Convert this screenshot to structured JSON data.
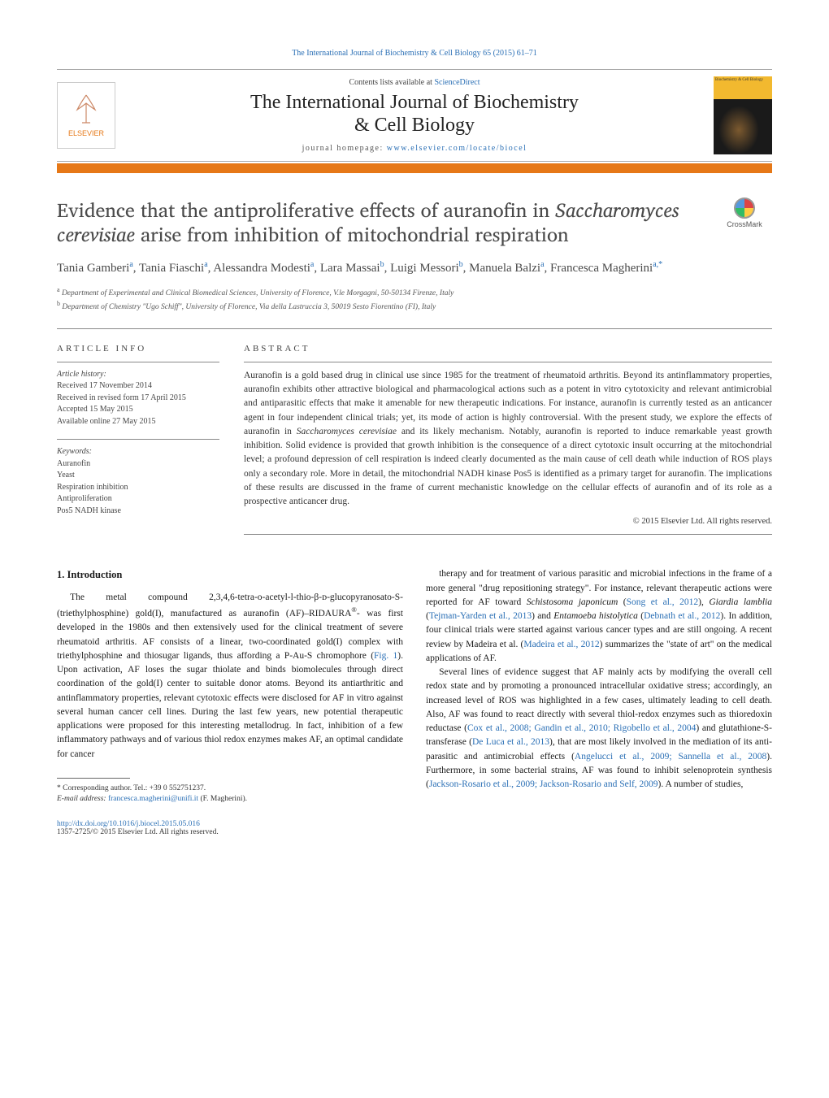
{
  "header": {
    "running_head": "The International Journal of Biochemistry & Cell Biology 65 (2015) 61–71",
    "contents_prefix": "Contents lists available at ",
    "contents_link": "ScienceDirect",
    "journal_title_line1": "The International Journal of Biochemistry",
    "journal_title_line2": "& Cell Biology",
    "homepage_prefix": "journal homepage: ",
    "homepage_link": "www.elsevier.com/locate/biocel",
    "cover_text": "Biochemistry & Cell Biology",
    "elsevier": "ELSEVIER"
  },
  "crossmark": "CrossMark",
  "article": {
    "title_before_em": "Evidence that the antiproliferative effects of auranofin in ",
    "title_em": "Saccharomyces cerevisiae",
    "title_after_em": " arise from inhibition of mitochondrial respiration",
    "authors_html": "Tania Gamberi",
    "authors": [
      {
        "name": "Tania Gamberi",
        "aff": "a"
      },
      {
        "name": "Tania Fiaschi",
        "aff": "a"
      },
      {
        "name": "Alessandra Modesti",
        "aff": "a"
      },
      {
        "name": "Lara Massai",
        "aff": "b"
      },
      {
        "name": "Luigi Messori",
        "aff": "b"
      },
      {
        "name": "Manuela Balzi",
        "aff": "a"
      },
      {
        "name": "Francesca Magherini",
        "aff": "a,*"
      }
    ],
    "affiliations": [
      {
        "sup": "a",
        "text": "Department of Experimental and Clinical Biomedical Sciences, University of Florence, V.le Morgagni, 50-50134 Firenze, Italy"
      },
      {
        "sup": "b",
        "text": "Department of Chemistry \"Ugo Schiff\", University of Florence, Via della Lastruccia 3, 50019 Sesto Fiorentino (FI), Italy"
      }
    ]
  },
  "info": {
    "label": "article info",
    "history_label": "Article history:",
    "history": [
      "Received 17 November 2014",
      "Received in revised form 17 April 2015",
      "Accepted 15 May 2015",
      "Available online 27 May 2015"
    ],
    "keywords_label": "Keywords:",
    "keywords": [
      "Auranofin",
      "Yeast",
      "Respiration inhibition",
      "Antiproliferation",
      "Pos5 NADH kinase"
    ]
  },
  "abstract": {
    "label": "abstract",
    "text_parts": [
      "Auranofin is a gold based drug in clinical use since 1985 for the treatment of rheumatoid arthritis. Beyond its antinflammatory properties, auranofin exhibits other attractive biological and pharmacological actions such as a potent in vitro cytotoxicity and relevant antimicrobial and antiparasitic effects that make it amenable for new therapeutic indications. For instance, auranofin is currently tested as an anticancer agent in four independent clinical trials; yet, its mode of action is highly controversial. With the present study, we explore the effects of auranofin in ",
      "Saccharomyces cerevisiae",
      " and its likely mechanism. Notably, auranofin is reported to induce remarkable yeast growth inhibition. Solid evidence is provided that growth inhibition is the consequence of a direct cytotoxic insult occurring at the mitochondrial level; a profound depression of cell respiration is indeed clearly documented as the main cause of cell death while induction of ROS plays only a secondary role. More in detail, the mitochondrial NADH kinase Pos5 is identified as a primary target for auranofin. The implications of these results are discussed in the frame of current mechanistic knowledge on the cellular effects of auranofin and of its role as a prospective anticancer drug."
    ],
    "copyright": "© 2015 Elsevier Ltd. All rights reserved."
  },
  "body": {
    "heading": "1. Introduction",
    "col1_p1_parts": [
      "The metal compound 2,3,4,6-tetra-o-acetyl-l-thio-β-ᴅ-glucopyranosato-S-(triethylphosphine) gold(I), manufactured as auranofin (AF)–RIDAURA",
      "®",
      "- was first developed in the 1980s and then extensively used for the clinical treatment of severe rheumatoid arthritis. AF consists of a linear, two-coordinated gold(I) complex with triethylphosphine and thiosugar ligands, thus affording a P-Au-S chromophore (",
      "Fig. 1",
      "). Upon activation, AF loses the sugar thiolate and binds biomolecules through direct coordination of the gold(I) center to suitable donor atoms. Beyond its antiarthritic and antinflammatory properties, relevant cytotoxic effects were disclosed for AF in vitro against several human cancer cell lines. During the last few years, new potential therapeutic applications were proposed for this interesting metallodrug. In fact, inhibition of a few inflammatory pathways and of various thiol redox enzymes makes AF, an optimal candidate for cancer"
    ],
    "col2_p1_parts": [
      "therapy and for treatment of various parasitic and microbial infections in the frame of a more general \"drug repositioning strategy\". For instance, relevant therapeutic actions were reported for AF toward ",
      "Schistosoma japonicum",
      " (",
      "Song et al., 2012",
      "), ",
      "Giardia lamblia",
      " (",
      "Tejman-Yarden et al., 2013",
      ") and ",
      "Entamoeba histolytica",
      " (",
      "Debnath et al., 2012",
      "). In addition, four clinical trials were started against various cancer types and are still ongoing. A recent review by Madeira et al. (",
      "Madeira et al., 2012",
      ") summarizes the \"state of art\" on the medical applications of AF."
    ],
    "col2_p2_parts": [
      "Several lines of evidence suggest that AF mainly acts by modifying the overall cell redox state and by promoting a pronounced intracellular oxidative stress; accordingly, an increased level of ROS was highlighted in a few cases, ultimately leading to cell death. Also, AF was found to react directly with several thiol-redox enzymes such as thioredoxin reductase (",
      "Cox et al., 2008; Gandin et al., 2010; Rigobello et al., 2004",
      ") and glutathione-S-transferase (",
      "De Luca et al., 2013",
      "), that are most likely involved in the mediation of its anti-parasitic and antimicrobial effects (",
      "Angelucci et al., 2009; Sannella et al., 2008",
      "). Furthermore, in some bacterial strains, AF was found to inhibit selenoprotein synthesis (",
      "Jackson-Rosario et al., 2009; Jackson-Rosario and Self, 2009",
      "). A number of studies,"
    ]
  },
  "footnote": {
    "corresponding": "* Corresponding author. Tel.: +39 0 552751237.",
    "email_label": "E-mail address: ",
    "email": "francesca.magherini@unifi.it",
    "email_suffix": " (F. Magherini)."
  },
  "footer": {
    "doi": "http://dx.doi.org/10.1016/j.biocel.2015.05.016",
    "issn": "1357-2725/© 2015 Elsevier Ltd. All rights reserved."
  },
  "colors": {
    "link": "#2a6fb5",
    "orange": "#e67817",
    "text_gray": "#4a4a4a",
    "cover_yellow": "#f2b92f"
  }
}
